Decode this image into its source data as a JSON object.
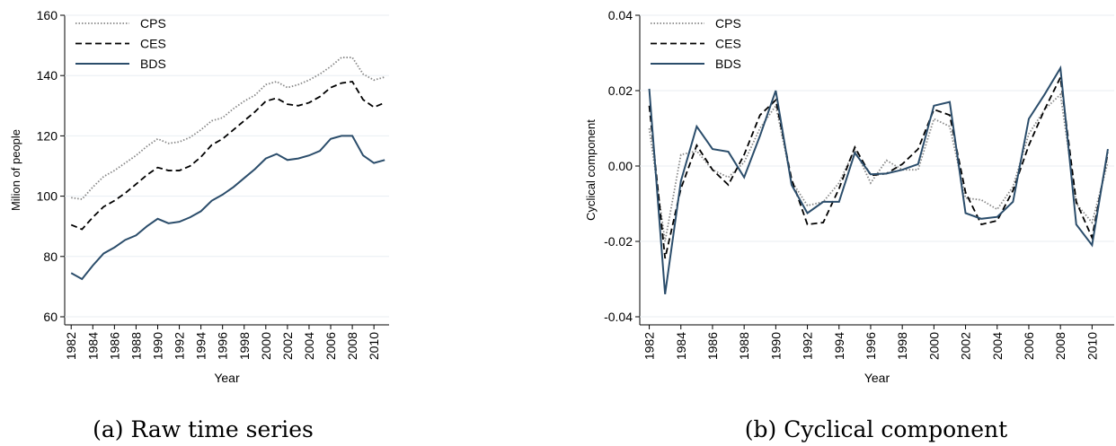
{
  "chart_data": [
    {
      "type": "line",
      "caption": "(a) Raw time series",
      "xlabel": "Year",
      "ylabel": "Milion of people",
      "x": [
        1982,
        1983,
        1984,
        1985,
        1986,
        1987,
        1988,
        1989,
        1990,
        1991,
        1992,
        1993,
        1994,
        1995,
        1996,
        1997,
        1998,
        1999,
        2000,
        2001,
        2002,
        2003,
        2004,
        2005,
        2006,
        2007,
        2008,
        2009,
        2010,
        2011
      ],
      "series": [
        {
          "name": "CPS",
          "color": "#888888",
          "line_style": "dotted",
          "values": [
            99.5,
            99,
            103,
            106.5,
            108.5,
            111,
            113.5,
            116.5,
            119,
            117.5,
            118,
            119.5,
            122,
            125,
            126,
            129,
            131.5,
            133.5,
            137,
            138,
            136,
            137,
            138.5,
            140.5,
            143,
            146,
            146,
            140.5,
            138.5,
            139.5
          ]
        },
        {
          "name": "CES",
          "color": "#000000",
          "line_style": "dashed",
          "values": [
            90.5,
            89,
            93,
            96.5,
            98.5,
            101,
            104,
            107,
            109.5,
            108.5,
            108.5,
            110,
            113,
            117,
            119,
            122,
            125,
            128,
            131.5,
            132.5,
            130.5,
            130,
            131,
            133,
            136,
            137.5,
            138,
            132,
            129.5,
            131
          ]
        },
        {
          "name": "BDS",
          "color": "#2b4d6b",
          "line_style": "solid",
          "values": [
            74.5,
            72.5,
            77,
            81,
            83,
            85.5,
            87,
            90,
            92.5,
            91,
            91.5,
            93,
            95,
            98.5,
            100.5,
            103,
            106,
            109,
            112.5,
            114,
            112,
            112.5,
            113.5,
            115,
            119,
            120,
            120,
            113.5,
            111,
            112
          ]
        }
      ],
      "xlim": [
        1981.4,
        2011.4
      ],
      "xticks": [
        1982,
        1984,
        1986,
        1988,
        1990,
        1992,
        1994,
        1996,
        1998,
        2000,
        2002,
        2004,
        2006,
        2008,
        2010
      ],
      "ylim": [
        60,
        160
      ],
      "yticks": [
        60,
        80,
        100,
        120,
        140,
        160
      ],
      "grid": true,
      "legend": "top-left"
    },
    {
      "type": "line",
      "caption": "(b) Cyclical component",
      "xlabel": "Year",
      "ylabel": "Cyclical component",
      "x": [
        1982,
        1983,
        1984,
        1985,
        1986,
        1987,
        1988,
        1989,
        1990,
        1991,
        1992,
        1993,
        1994,
        1995,
        1996,
        1997,
        1998,
        1999,
        2000,
        2001,
        2002,
        2003,
        2004,
        2005,
        2006,
        2007,
        2008,
        2009,
        2010,
        2011
      ],
      "series": [
        {
          "name": "CPS",
          "color": "#888888",
          "line_style": "dotted",
          "values": [
            0.01,
            -0.02,
            0.003,
            0.004,
            -0.001,
            -0.003,
            0.001,
            0.01,
            0.016,
            -0.004,
            -0.0105,
            -0.0095,
            -0.0045,
            0.0045,
            -0.0045,
            0.0015,
            -0.001,
            -0.001,
            0.0125,
            0.0105,
            -0.0085,
            -0.009,
            -0.0115,
            -0.0055,
            0.0085,
            0.015,
            0.019,
            -0.01,
            -0.015,
            0.001
          ]
        },
        {
          "name": "CES",
          "color": "#000000",
          "line_style": "dashed",
          "values": [
            0.016,
            -0.0245,
            -0.006,
            0.0055,
            -0.001,
            -0.005,
            0.003,
            0.0135,
            0.0175,
            -0.0035,
            -0.0155,
            -0.015,
            -0.006,
            0.005,
            -0.0025,
            -0.002,
            0.0005,
            0.0045,
            0.015,
            0.0135,
            -0.007,
            -0.0155,
            -0.0145,
            -0.0065,
            0.0055,
            0.015,
            0.0235,
            -0.0095,
            -0.019,
            0.0035
          ]
        },
        {
          "name": "BDS",
          "color": "#2b4d6b",
          "line_style": "solid",
          "values": [
            0.0205,
            -0.034,
            -0.004,
            0.0105,
            0.0045,
            0.0038,
            -0.003,
            0.008,
            0.02,
            -0.005,
            -0.0125,
            -0.0095,
            -0.0095,
            0.0035,
            -0.0022,
            -0.002,
            -0.001,
            0.0005,
            0.016,
            0.017,
            -0.0125,
            -0.014,
            -0.0135,
            -0.0095,
            0.0125,
            0.019,
            0.026,
            -0.0155,
            -0.021,
            0.0045
          ]
        }
      ],
      "xlim": [
        1981.4,
        2011.4
      ],
      "xticks": [
        1982,
        1984,
        1986,
        1988,
        1990,
        1992,
        1994,
        1996,
        1998,
        2000,
        2002,
        2004,
        2006,
        2008,
        2010
      ],
      "ylim": [
        -0.04,
        0.04
      ],
      "yticks": [
        -0.04,
        -0.02,
        {
          "value": 0,
          "label": "0.00"
        },
        0.02,
        0.04
      ],
      "grid": true,
      "legend": "top-left"
    }
  ]
}
